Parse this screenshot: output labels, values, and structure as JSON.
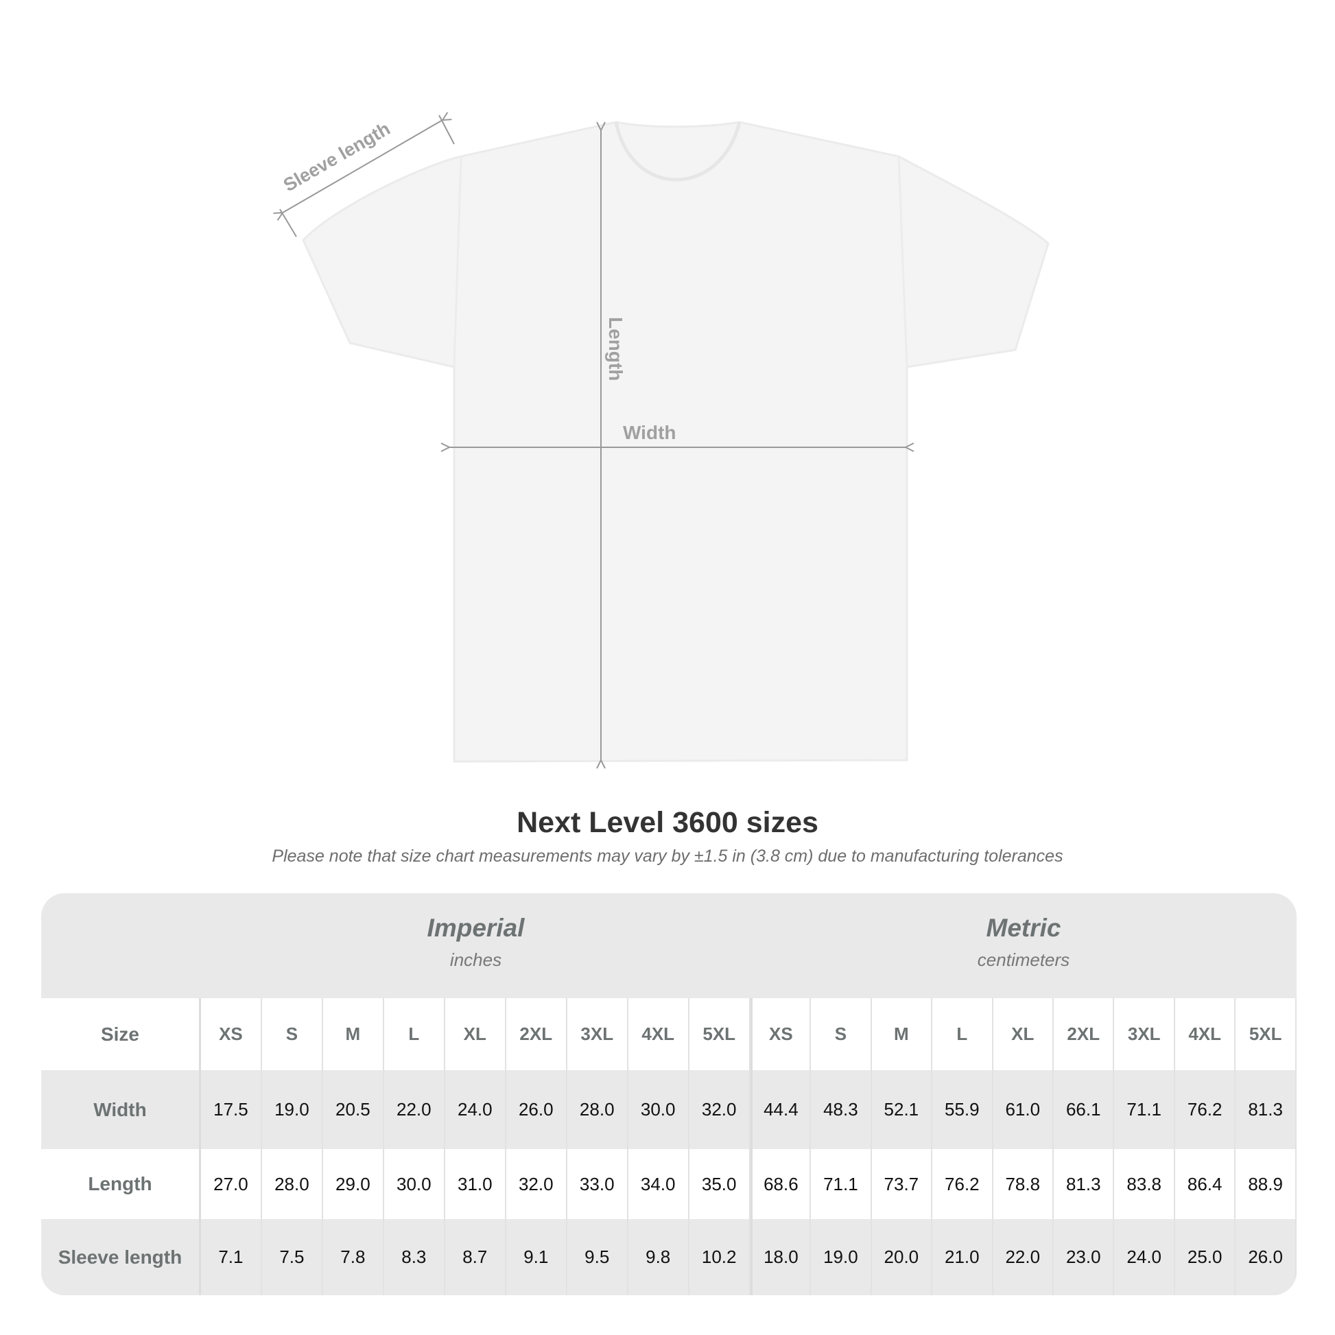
{
  "diagram": {
    "sleeve_label": "Sleeve length",
    "length_label": "Length",
    "width_label": "Width"
  },
  "title": "Next Level 3600 sizes",
  "subtitle": "Please note that size chart measurements may vary by ±1.5 in (3.8 cm) due to manufacturing tolerances",
  "table": {
    "imperial": {
      "name": "Imperial",
      "unit": "inches"
    },
    "metric": {
      "name": "Metric",
      "unit": "centimeters"
    },
    "size_label": "Size",
    "sizes": [
      "XS",
      "S",
      "M",
      "L",
      "XL",
      "2XL",
      "3XL",
      "4XL",
      "5XL"
    ],
    "rows": [
      {
        "label": "Width",
        "imperial": [
          "17.5",
          "19.0",
          "20.5",
          "22.0",
          "24.0",
          "26.0",
          "28.0",
          "30.0",
          "32.0"
        ],
        "metric": [
          "44.4",
          "48.3",
          "52.1",
          "55.9",
          "61.0",
          "66.1",
          "71.1",
          "76.2",
          "81.3"
        ]
      },
      {
        "label": "Length",
        "imperial": [
          "27.0",
          "28.0",
          "29.0",
          "30.0",
          "31.0",
          "32.0",
          "33.0",
          "34.0",
          "35.0"
        ],
        "metric": [
          "68.6",
          "71.1",
          "73.7",
          "76.2",
          "78.8",
          "81.3",
          "83.8",
          "86.4",
          "88.9"
        ]
      },
      {
        "label": "Sleeve length",
        "imperial": [
          "7.1",
          "7.5",
          "7.8",
          "8.3",
          "8.7",
          "9.1",
          "9.5",
          "9.8",
          "10.2"
        ],
        "metric": [
          "18.0",
          "19.0",
          "20.0",
          "21.0",
          "22.0",
          "23.0",
          "24.0",
          "25.0",
          "26.0"
        ]
      }
    ]
  }
}
